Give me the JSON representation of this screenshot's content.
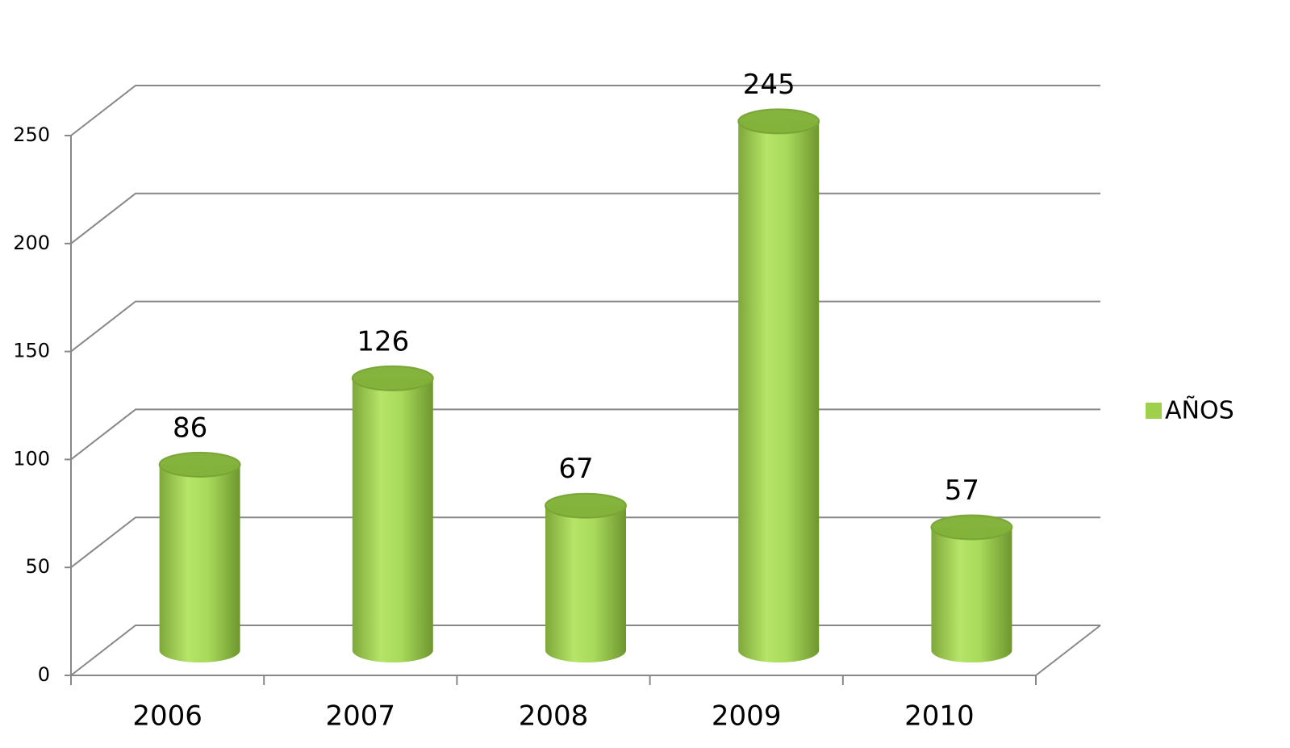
{
  "chart_data": {
    "type": "bar",
    "categories": [
      "2006",
      "2007",
      "2008",
      "2009",
      "2010"
    ],
    "series": [
      {
        "name": "AÑOS",
        "color": "#9ed04c",
        "values": [
          86,
          126,
          67,
          245,
          57
        ]
      }
    ],
    "ylim": [
      0,
      250
    ],
    "yticks": [
      0,
      50,
      100,
      150,
      200,
      250
    ],
    "grid": true,
    "legend": "right"
  }
}
